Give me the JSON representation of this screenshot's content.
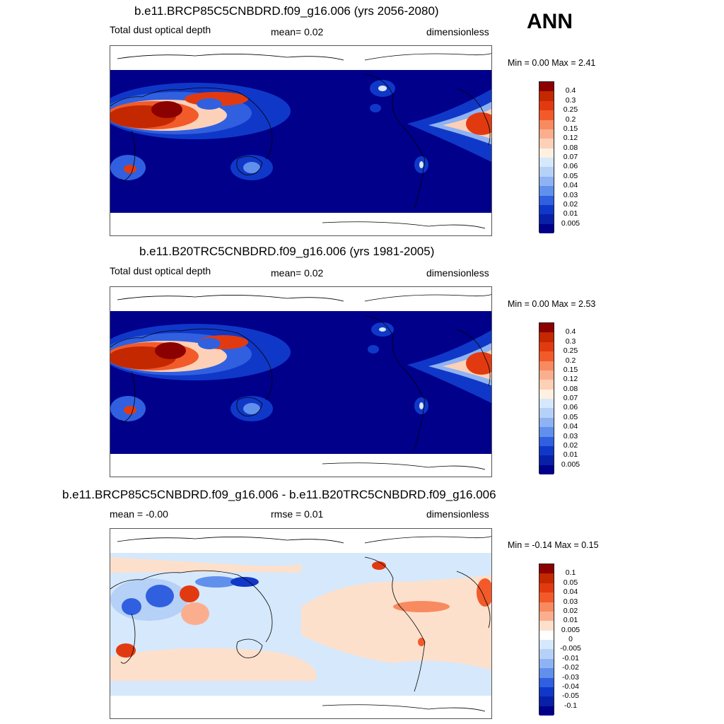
{
  "season": "ANN",
  "panels": [
    {
      "title": "b.e11.BRCP85C5CNBDRD.f09_g16.006 (yrs 2056-2080)",
      "left_label": "Total dust optical depth",
      "center_label": "mean=   0.02",
      "right_label": "dimensionless",
      "minmax": "Min =   0.00 Max =   2.41",
      "levels": [
        "0.4",
        "0.3",
        "0.25",
        "0.2",
        "0.15",
        "0.12",
        "0.08",
        "0.07",
        "0.06",
        "0.05",
        "0.04",
        "0.03",
        "0.02",
        "0.01",
        "0.005"
      ],
      "colors": [
        "#8b0000",
        "#c42800",
        "#e23a10",
        "#f25a2a",
        "#f88a60",
        "#fbae8e",
        "#fdd0b8",
        "#fff0e0",
        "#d6e8fb",
        "#b6d1f7",
        "#8fb2f2",
        "#6090ec",
        "#3060e0",
        "#1038c8",
        "#0820a8",
        "#00008b"
      ]
    },
    {
      "title": "b.e11.B20TRC5CNBDRD.f09_g16.006 (yrs 1981-2005)",
      "left_label": "Total dust optical depth",
      "center_label": "mean=   0.02",
      "right_label": "dimensionless",
      "minmax": "Min =   0.00 Max =   2.53",
      "levels": [
        "0.4",
        "0.3",
        "0.25",
        "0.2",
        "0.15",
        "0.12",
        "0.08",
        "0.07",
        "0.06",
        "0.05",
        "0.04",
        "0.03",
        "0.02",
        "0.01",
        "0.005"
      ],
      "colors": [
        "#8b0000",
        "#c42800",
        "#e23a10",
        "#f25a2a",
        "#f88a60",
        "#fbae8e",
        "#fdd0b8",
        "#fff0e0",
        "#d6e8fb",
        "#b6d1f7",
        "#8fb2f2",
        "#6090ec",
        "#3060e0",
        "#1038c8",
        "#0820a8",
        "#00008b"
      ]
    },
    {
      "title": "b.e11.BRCP85C5CNBDRD.f09_g16.006 - b.e11.B20TRC5CNBDRD.f09_g16.006",
      "left_label": "mean =  -0.00",
      "center_label": "rmse =   0.01",
      "right_label": "dimensionless",
      "minmax": "Min =  -0.14 Max =   0.15",
      "levels": [
        "0.1",
        "0.05",
        "0.04",
        "0.03",
        "0.02",
        "0.01",
        "0.005",
        "0",
        "-0.005",
        "-0.01",
        "-0.02",
        "-0.03",
        "-0.04",
        "-0.05",
        "-0.1"
      ],
      "colors": [
        "#8b0000",
        "#c42800",
        "#e23a10",
        "#f25a2a",
        "#f88a60",
        "#fbae8e",
        "#fde0cc",
        "#ffffff",
        "#d6e8fb",
        "#b6d1f7",
        "#8fb2f2",
        "#6090ec",
        "#3060e0",
        "#1038c8",
        "#0820a8",
        "#00008b"
      ]
    }
  ]
}
